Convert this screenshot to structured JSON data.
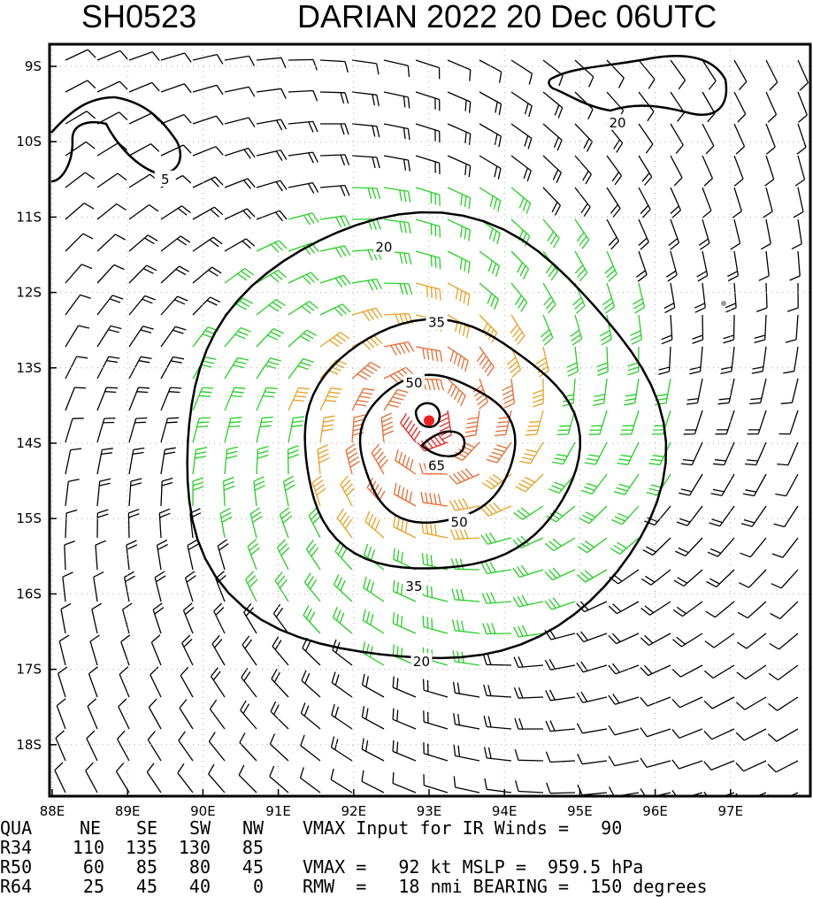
{
  "title": {
    "storm_id": "SH0523",
    "storm_info": "DARIAN 2022 20 Dec 06UTC"
  },
  "map": {
    "lon_labels": [
      "88E",
      "89E",
      "90E",
      "91E",
      "92E",
      "93E",
      "94E",
      "95E",
      "96E",
      "97E"
    ],
    "lat_labels": [
      "9S",
      "10S",
      "11S",
      "12S",
      "13S",
      "14S",
      "15S",
      "16S",
      "17S",
      "18S"
    ],
    "lon_range": [
      88,
      98.5
    ],
    "lat_range": [
      -8.3,
      -18.8
    ],
    "center": {
      "lon": 93.0,
      "lat": -13.7
    },
    "contour_labels": [
      {
        "text": "5",
        "lon": 89.5,
        "lat": -10.5
      },
      {
        "text": "20",
        "lon": 95.5,
        "lat": -9.75
      },
      {
        "text": "20",
        "lon": 92.4,
        "lat": -11.4
      },
      {
        "text": "35",
        "lon": 93.1,
        "lat": -12.4
      },
      {
        "text": "50",
        "lon": 92.8,
        "lat": -13.2
      },
      {
        "text": "65",
        "lon": 93.1,
        "lat": -14.3
      },
      {
        "text": "50",
        "lon": 93.4,
        "lat": -15.05
      },
      {
        "text": "35",
        "lon": 92.8,
        "lat": -15.9
      },
      {
        "text": "20",
        "lon": 92.9,
        "lat": -16.9
      }
    ],
    "colors": {
      "below_34kt": "#000000",
      "34_to_50kt": "#22d022",
      "50_to_64kt": "#e8a020",
      "64_plus_kt": "#e86a30",
      "core": "#ee2020"
    }
  },
  "stats": {
    "headers": [
      "QUA",
      "NE",
      "SE",
      "SW",
      "NW"
    ],
    "rows": [
      {
        "label": "R34",
        "values": [
          "110",
          "135",
          "130",
          "85"
        ]
      },
      {
        "label": "R50",
        "values": [
          "60",
          "85",
          "80",
          "45"
        ]
      },
      {
        "label": "R64",
        "values": [
          "25",
          "45",
          "40",
          "0"
        ]
      }
    ],
    "line1": "VMAX Input for IR Winds =   90",
    "line2": "VMAX =   92 kt MSLP =  959.5 hPa",
    "line3": "RMW  =   18 nmi BEARING =  150 degrees"
  }
}
